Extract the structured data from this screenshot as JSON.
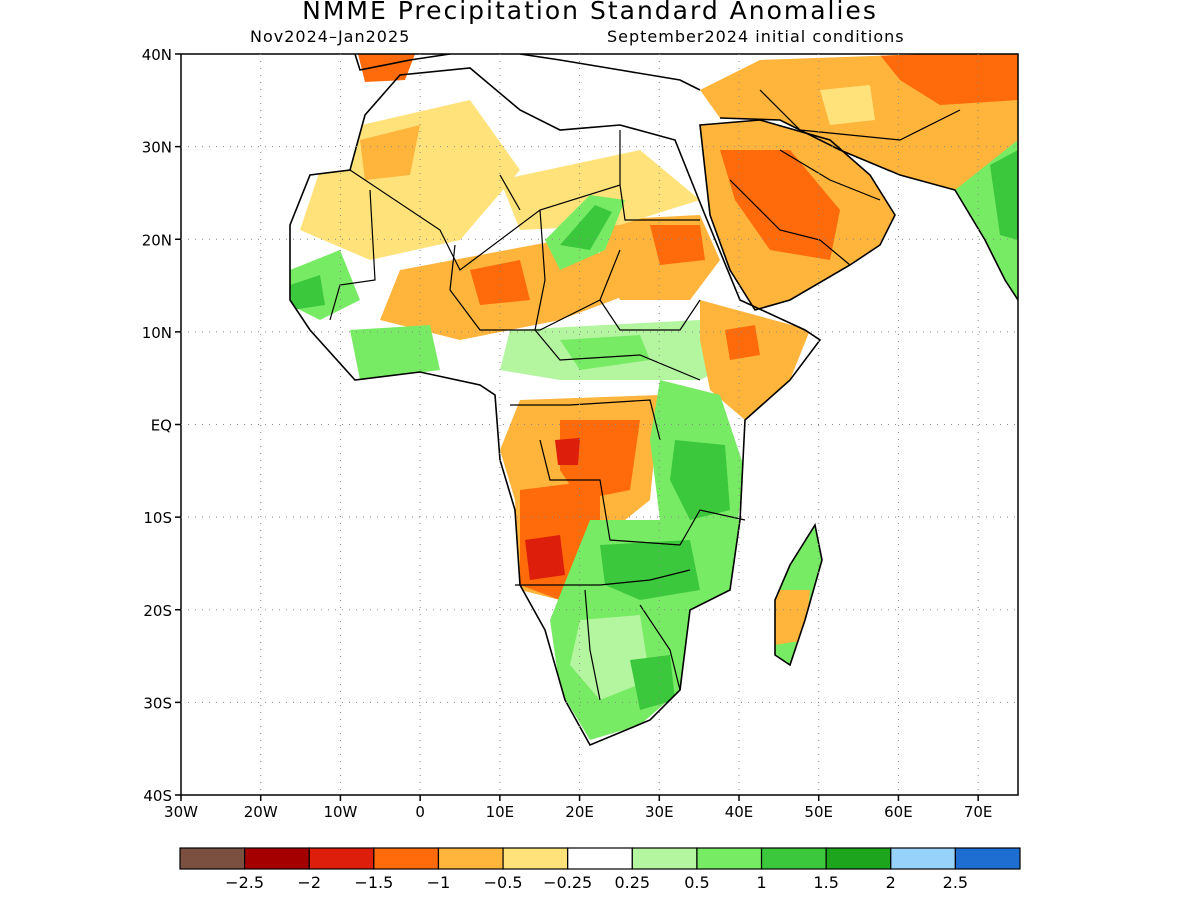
{
  "title": "NMME Precipitation Standard Anomalies",
  "subtitle_left": "Nov2024–Jan2025",
  "subtitle_right": "September2024 initial conditions",
  "lat_labels": [
    "40N",
    "30N",
    "20N",
    "10N",
    "EQ",
    "10S",
    "20S",
    "30S",
    "40S"
  ],
  "lon_labels": [
    "30W",
    "20W",
    "10W",
    "0",
    "10E",
    "20E",
    "30E",
    "40E",
    "50E",
    "60E",
    "70E"
  ],
  "map_extent": {
    "lon_min": -30,
    "lon_max": 75,
    "lat_min": -40,
    "lat_max": 40
  },
  "colorbar": {
    "colors": [
      "#7b5040",
      "#a50000",
      "#dc1e0a",
      "#ff6a0a",
      "#ffb43c",
      "#ffe27a",
      "#ffffff",
      "#b4f5a0",
      "#78eb64",
      "#3cc83c",
      "#1ea51e",
      "#96d2fa",
      "#1e6ed2"
    ],
    "tick_labels": [
      "−2.5",
      "−2",
      "−1.5",
      "−1",
      "−0.5",
      "−0.25",
      "0.25",
      "0.5",
      "1",
      "1.5",
      "2",
      "2.5"
    ]
  }
}
